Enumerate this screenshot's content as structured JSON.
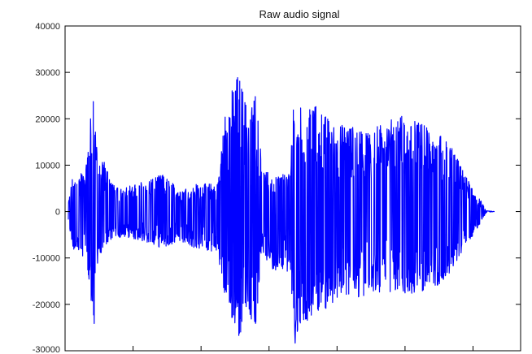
{
  "chart_data": {
    "type": "line",
    "title": "Raw audio signal",
    "xlabel": "",
    "ylabel": "",
    "ylim": [
      -30000,
      40000
    ],
    "y_ticks": [
      40000,
      30000,
      20000,
      10000,
      0,
      -10000,
      -20000,
      -30000
    ],
    "y_tick_labels": [
      "40000",
      "30000",
      "20000",
      "10000",
      "0",
      "-10000",
      "-20000",
      "-30000"
    ],
    "x_tick_labels": [],
    "grid": false,
    "legend": "none",
    "series": [
      {
        "color": "#0000ff",
        "envelope": {
          "description_units": "sample fraction vs amplitude",
          "x": [
            0.0,
            0.01,
            0.04,
            0.06,
            0.07,
            0.08,
            0.11,
            0.16,
            0.22,
            0.26,
            0.3,
            0.35,
            0.37,
            0.4,
            0.42,
            0.44,
            0.455,
            0.48,
            0.52,
            0.53,
            0.54,
            0.56,
            0.58,
            0.62,
            0.66,
            0.7,
            0.74,
            0.78,
            0.82,
            0.86,
            0.9,
            0.93,
            0.95,
            0.97,
            0.98,
            1.0
          ],
          "max": [
            2000,
            7500,
            9000,
            27500,
            9000,
            12000,
            5000,
            6000,
            8000,
            5000,
            6000,
            6000,
            23000,
            30000,
            22000,
            26000,
            9000,
            8000,
            8000,
            29000,
            22000,
            24000,
            23000,
            19000,
            18500,
            17500,
            19000,
            21000,
            19500,
            17500,
            14000,
            8000,
            5000,
            2000,
            200,
            0
          ],
          "min": [
            -2000,
            -8000,
            -10000,
            -26000,
            -10000,
            -8500,
            -5500,
            -6000,
            -8000,
            -6500,
            -8000,
            -9000,
            -20000,
            -27500,
            -22000,
            -26000,
            -9000,
            -12500,
            -13000,
            -29500,
            -25000,
            -24000,
            -23000,
            -20000,
            -19000,
            -18000,
            -17500,
            -18000,
            -17500,
            -16500,
            -13000,
            -8000,
            -5000,
            -2000,
            -200,
            0
          ]
        }
      }
    ]
  }
}
